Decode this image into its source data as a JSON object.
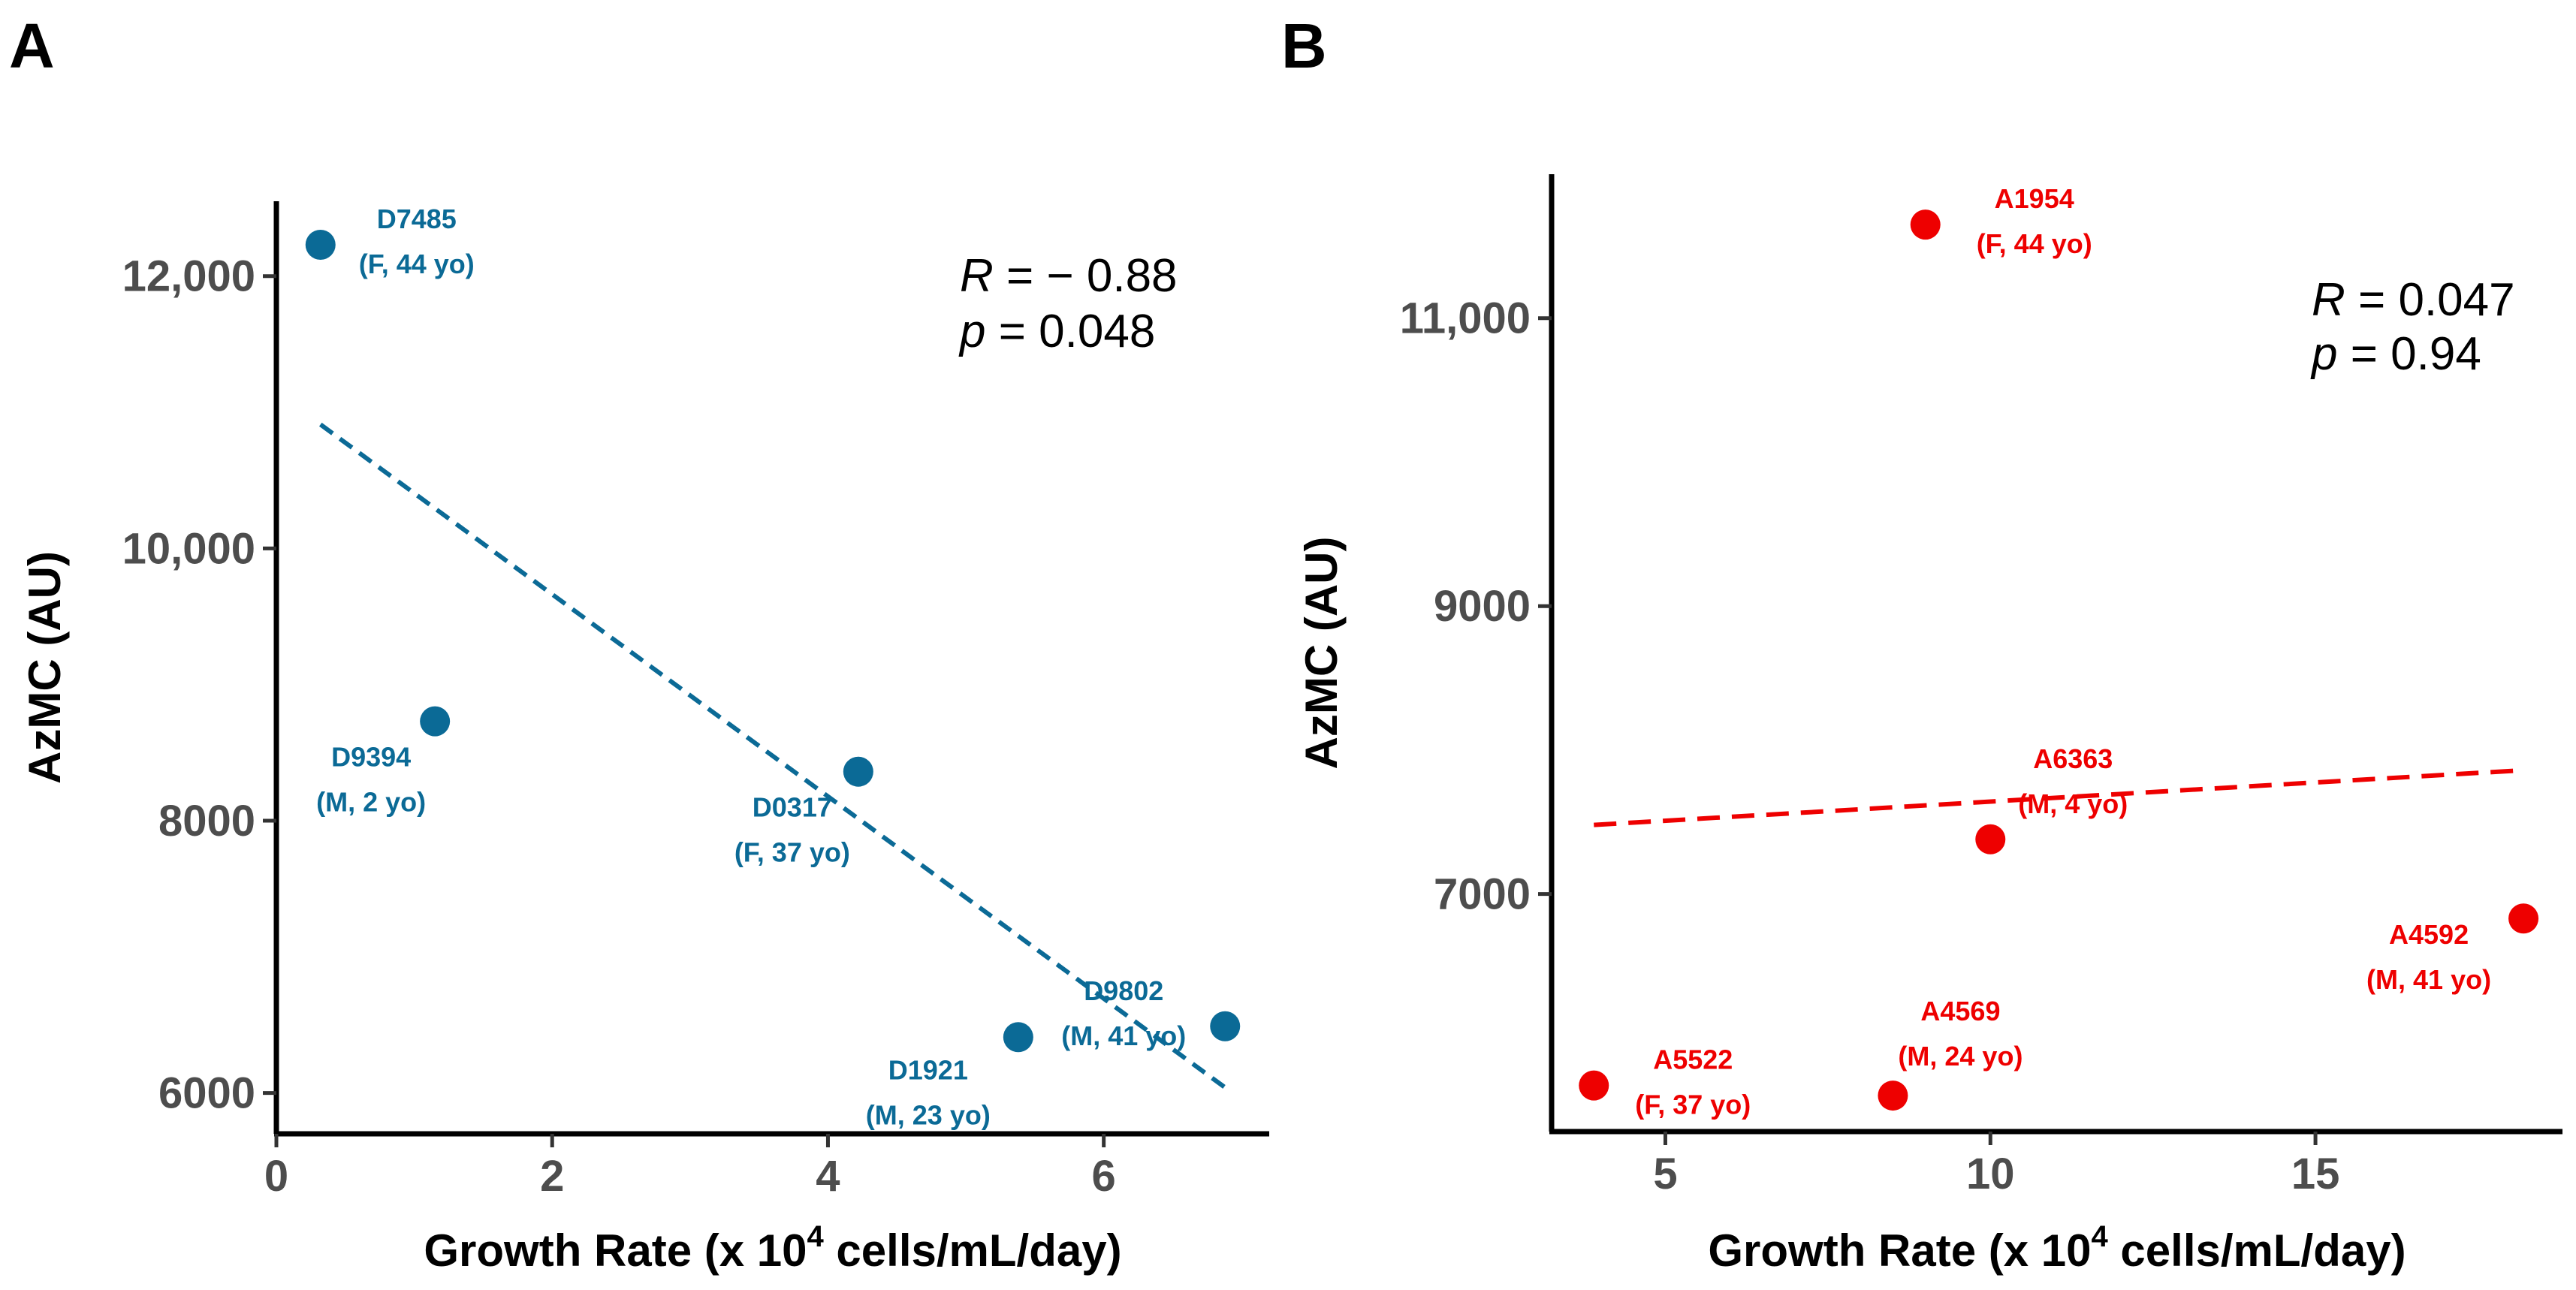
{
  "colors": {
    "A": "#0b6a96",
    "B": "#ee0000",
    "axis": "#000000",
    "tick_text": "#4d4d4d"
  },
  "chart_data": [
    {
      "panel": "A",
      "type": "scatter",
      "xlabel_prefix": "Growth Rate (x 10",
      "xlabel_sup": "4",
      "xlabel_suffix": " cells/mL/day)",
      "ylabel": "AzMC (AU)",
      "xlim": [
        0,
        7.2
      ],
      "ylim": [
        5700,
        12550
      ],
      "xticks": [
        0,
        2,
        4,
        6
      ],
      "xtick_labels": [
        "0",
        "2",
        "4",
        "6"
      ],
      "yticks": [
        6000,
        8000,
        10000,
        12000
      ],
      "ytick_labels": [
        "6000",
        "8000",
        "10,000",
        "12,000"
      ],
      "points": [
        {
          "id": "D7485",
          "x": 0.32,
          "y": 12230,
          "label1": "D7485",
          "label2": "(F, 44 yo)"
        },
        {
          "id": "D9394",
          "x": 1.15,
          "y": 8730,
          "label1": "D9394",
          "label2": "(M, 2 yo)"
        },
        {
          "id": "D0317",
          "x": 4.22,
          "y": 8360,
          "label1": "D0317",
          "label2": "(F, 37 yo)"
        },
        {
          "id": "D1921",
          "x": 5.38,
          "y": 6410,
          "label1": "D1921",
          "label2": "(M, 23 yo)"
        },
        {
          "id": "D9802",
          "x": 6.88,
          "y": 6490,
          "label1": "D9802",
          "label2": "(M, 41 yo)"
        }
      ],
      "trend_line": {
        "x": [
          0.32,
          6.88
        ],
        "y": [
          10910,
          6040
        ]
      },
      "stats": {
        "r_label": "R",
        "r_value": " = − 0.88",
        "p_label": "p",
        "p_value": " = 0.048"
      }
    },
    {
      "panel": "B",
      "type": "scatter",
      "xlabel_prefix": "Growth Rate (x 10",
      "xlabel_sup": "4",
      "xlabel_suffix": " cells/mL/day)",
      "ylabel": "AzMC (AU)",
      "xlim": [
        3.25,
        18.8
      ],
      "ylim": [
        5350,
        12000
      ],
      "xticks": [
        5,
        10,
        15
      ],
      "xtick_labels": [
        "5",
        "10",
        "15"
      ],
      "yticks": [
        7000,
        9000,
        11000
      ],
      "ytick_labels": [
        "7000",
        "9000",
        "11,000"
      ],
      "points": [
        {
          "id": "A1954",
          "x": 9.0,
          "y": 11650,
          "label1": "A1954",
          "label2": "(F, 44 yo)"
        },
        {
          "id": "A6363",
          "x": 10.0,
          "y": 7380,
          "label1": "A6363",
          "label2": "(M, 4 yo)"
        },
        {
          "id": "A4592",
          "x": 18.2,
          "y": 6830,
          "label1": "A4592",
          "label2": "(M, 41 yo)"
        },
        {
          "id": "A5522",
          "x": 3.9,
          "y": 5670,
          "label1": "A5522",
          "label2": "(F, 37 yo)"
        },
        {
          "id": "A4569",
          "x": 8.5,
          "y": 5600,
          "label1": "A4569",
          "label2": "(M, 24 yo)"
        }
      ],
      "trend_line": {
        "x": [
          3.9,
          18.2
        ],
        "y": [
          7480,
          7860
        ]
      },
      "stats": {
        "r_label": "R",
        "r_value": " = 0.047",
        "p_label": "p",
        "p_value": " = 0.94"
      }
    }
  ]
}
